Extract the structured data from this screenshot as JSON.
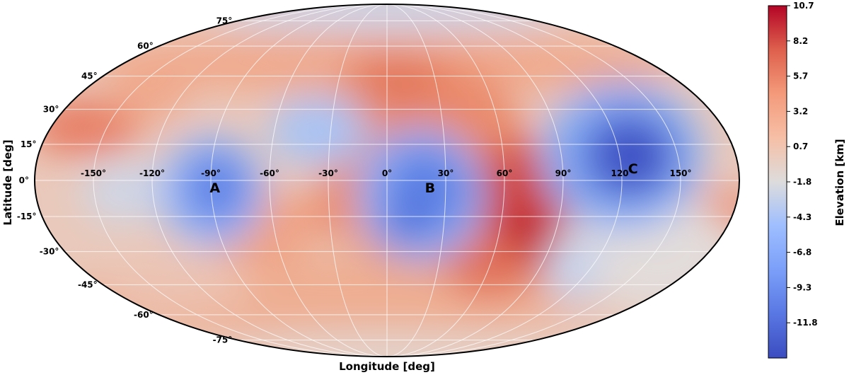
{
  "chart_data": {
    "type": "heatmap",
    "projection": "mollweide",
    "title": "",
    "xlabel": "Longitude [deg]",
    "ylabel": "Latitude [deg]",
    "longitude_ticks": [
      "-150°",
      "-120°",
      "-90°",
      "-60°",
      "-30°",
      "0°",
      "30°",
      "60°",
      "90°",
      "120°",
      "150°"
    ],
    "latitude_ticks": [
      "75°",
      "60°",
      "45°",
      "30°",
      "15°",
      "0°",
      "-15°",
      "-30°",
      "-45°",
      "-60°",
      "-75°"
    ],
    "longitude_values": [
      -150,
      -120,
      -90,
      -60,
      -30,
      0,
      30,
      60,
      90,
      120,
      150
    ],
    "latitude_values": [
      75,
      60,
      45,
      30,
      15,
      0,
      -15,
      -30,
      -45,
      -60,
      -75
    ],
    "grid": true,
    "colorbar": {
      "label": "Elevation [km]",
      "colormap": "coolwarm",
      "range": [
        -14.3,
        10.7
      ],
      "tick_labels": [
        "10.7",
        "8.2",
        "5.7",
        "3.2",
        "0.7",
        "-1.8",
        "-4.3",
        "-6.8",
        "-9.3",
        "-11.8"
      ],
      "tick_values": [
        10.7,
        8.2,
        5.7,
        3.2,
        0.7,
        -1.8,
        -4.3,
        -6.8,
        -9.3,
        -11.8
      ]
    },
    "annotations": [
      {
        "text": "A",
        "lon": -88,
        "lat": -3
      },
      {
        "text": "B",
        "lon": 22,
        "lat": -3
      },
      {
        "text": "C",
        "lon": 126,
        "lat": 5
      }
    ],
    "features": [
      {
        "type": "low",
        "lon": -90,
        "lat": -2,
        "value": -11
      },
      {
        "type": "low",
        "lon": 25,
        "lat": 0,
        "value": -11
      },
      {
        "type": "low",
        "lon": 125,
        "lat": 8,
        "value": -12
      },
      {
        "type": "low",
        "lon": -40,
        "lat": 18,
        "value": -6
      },
      {
        "type": "high",
        "lon": 70,
        "lat": -15,
        "value": 10
      },
      {
        "type": "high",
        "lon": 60,
        "lat": 8,
        "value": 7
      },
      {
        "type": "high",
        "lon": 15,
        "lat": 38,
        "value": 6
      },
      {
        "type": "high",
        "lon": -165,
        "lat": 15,
        "value": 6
      },
      {
        "type": "high",
        "lon": 175,
        "lat": -12,
        "value": 5
      }
    ]
  }
}
